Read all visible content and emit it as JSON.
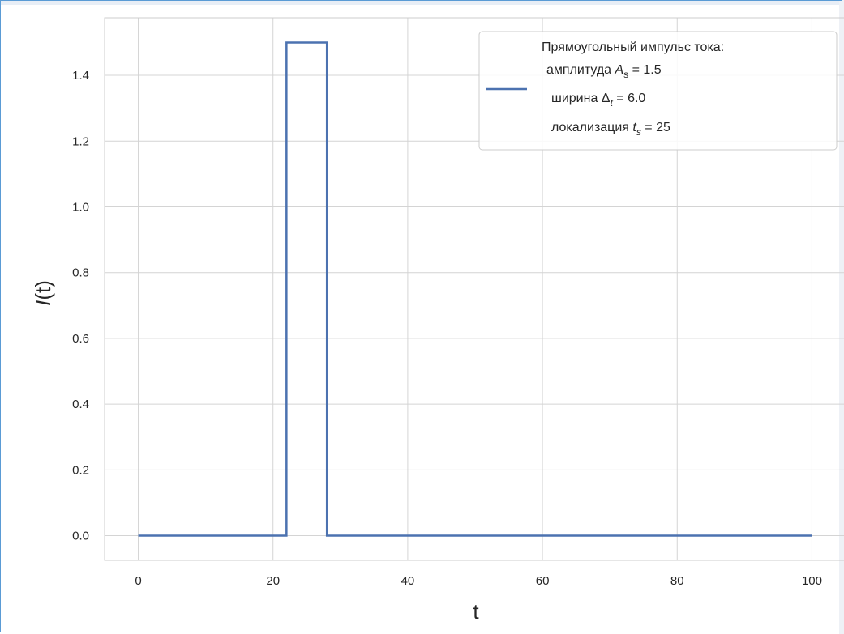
{
  "chart_data": {
    "type": "line",
    "xlabel": "t",
    "ylabel": "I(t)",
    "ylabel_italic_letter": "I",
    "ylabel_rest": "(t)",
    "xlim": [
      -5,
      105
    ],
    "ylim": [
      -0.075,
      1.575
    ],
    "x_ticks": [
      0,
      20,
      40,
      60,
      80,
      100
    ],
    "x_tick_labels": [
      "0",
      "20",
      "40",
      "60",
      "80",
      "100"
    ],
    "y_ticks": [
      0.0,
      0.2,
      0.4,
      0.6,
      0.8,
      1.0,
      1.2,
      1.4
    ],
    "y_tick_labels": [
      "0.0",
      "0.2",
      "0.4",
      "0.6",
      "0.8",
      "1.0",
      "1.2",
      "1.4"
    ],
    "grid": true,
    "legend_placement": "top-right",
    "line_color": "#4c72b0",
    "grid_color": "#d4d4d4",
    "spine_color": "#cccccc",
    "series": [
      {
        "x": [
          0,
          22,
          22,
          28,
          28,
          100
        ],
        "y": [
          0.0,
          0.0,
          1.5,
          1.5,
          0.0,
          0.0
        ]
      }
    ],
    "legend": {
      "title": "Прямоугольный импульс тока:",
      "line1": {
        "prefix": "амплитуда ",
        "var": "A",
        "sub": "s",
        "suffix": " =   1.5"
      },
      "line2": {
        "prefix": "ширина ",
        "var": "Δ",
        "sub": "t",
        "suffix": " = 6.0"
      },
      "line3": {
        "prefix": "локализация ",
        "var": "t",
        "sub": "s",
        "suffix": " = 25"
      }
    }
  }
}
